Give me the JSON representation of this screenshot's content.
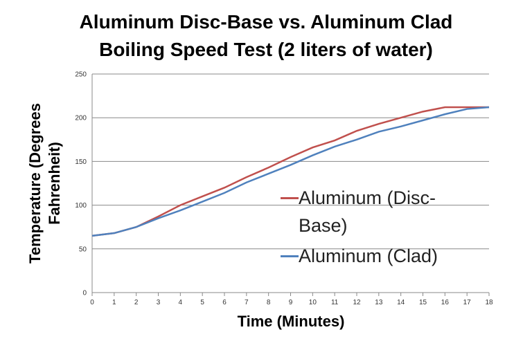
{
  "chart_data": {
    "type": "line",
    "title": "Aluminum Disc-Base vs. Aluminum Clad Boiling Speed Test (2 liters of water)",
    "x_label": "Time (Minutes)",
    "y_label": "Temperature (Degrees Fahrenheit)",
    "x": [
      0,
      1,
      2,
      3,
      4,
      5,
      6,
      7,
      8,
      9,
      10,
      11,
      12,
      13,
      14,
      15,
      16,
      17,
      18
    ],
    "series": [
      {
        "name": "Aluminum (Disc-Base)",
        "color": "#c0504d",
        "values": [
          65,
          68,
          75,
          87,
          100,
          110,
          120,
          132,
          143,
          155,
          166,
          174,
          185,
          193,
          200,
          207,
          212,
          212,
          212
        ]
      },
      {
        "name": "Aluminum (Clad)",
        "color": "#4f81bd",
        "values": [
          65,
          68,
          75,
          85,
          94,
          104,
          114,
          126,
          136,
          146,
          157,
          167,
          175,
          184,
          190,
          197,
          204,
          210,
          212
        ]
      }
    ],
    "xlim": [
      0,
      18
    ],
    "xticks": [
      0,
      1,
      2,
      3,
      4,
      5,
      6,
      7,
      8,
      9,
      10,
      11,
      12,
      13,
      14,
      15,
      16,
      17,
      18
    ],
    "ylim": [
      0,
      250
    ],
    "yticks": [
      0,
      50,
      100,
      150,
      200,
      250
    ],
    "grid": true
  }
}
